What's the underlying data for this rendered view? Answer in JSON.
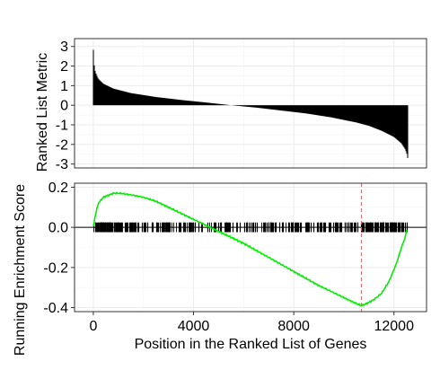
{
  "colors": {
    "background": "#ffffff",
    "panel_border": "#333333",
    "grid_major": "#ebebeb",
    "grid_minor": "#f5f5f5",
    "bars": "#000000",
    "enrichment_line": "#00ee00",
    "zero_line": "#000000",
    "max_dev_line": "#e06666"
  },
  "chart_data": [
    {
      "type": "bar",
      "panel": "top",
      "ylabel": "Ranked List Metric",
      "xlim": [
        -750,
        13300
      ],
      "ylim": [
        -3.2,
        3.4
      ],
      "yticks": [
        3,
        2,
        1,
        0,
        -1,
        -2,
        -3
      ],
      "ytick_labels": [
        "3",
        "2",
        "1",
        "0",
        "-1",
        "-2",
        "-3"
      ],
      "grid": true,
      "metric_curve": {
        "description": "ranked gene metric, sorted descending from position 0 to 12560",
        "x": [
          0,
          30,
          80,
          200,
          400,
          800,
          1500,
          2500,
          3500,
          4500,
          5500,
          6500,
          7500,
          8500,
          9500,
          10500,
          11000,
          11500,
          12000,
          12300,
          12450,
          12530,
          12560
        ],
        "y": [
          2.9,
          2.1,
          1.7,
          1.35,
          1.1,
          0.85,
          0.62,
          0.42,
          0.27,
          0.14,
          0.0,
          -0.12,
          -0.27,
          -0.42,
          -0.62,
          -0.88,
          -1.05,
          -1.3,
          -1.62,
          -1.95,
          -2.25,
          -2.55,
          -2.8
        ]
      }
    },
    {
      "type": "line",
      "panel": "bottom",
      "ylabel": "Running Enrichment Score",
      "xlabel": "Position in the Ranked List of Genes",
      "xlim": [
        -750,
        13300
      ],
      "ylim": [
        -0.42,
        0.22
      ],
      "xticks": [
        0,
        4000,
        8000,
        12000
      ],
      "xtick_labels": [
        "0",
        "4000",
        "8000",
        "12000"
      ],
      "yticks": [
        0.2,
        0.0,
        -0.2,
        -0.4
      ],
      "ytick_labels": [
        "0.2",
        "0.0",
        "-0.2",
        "-0.4"
      ],
      "grid": true,
      "hline": 0,
      "max_deviation_x": 10700,
      "gene_hits": {
        "description": "positions of gene-set members, drawn as vertical ticks around y = 0",
        "range": [
          0,
          12530
        ],
        "tick_half_height": 0.024,
        "approx_count": 360
      },
      "series": [
        {
          "x": [
            0,
            80,
            200,
            400,
            600,
            800,
            1000,
            1200,
            1500,
            2000,
            2500,
            3000,
            3500,
            4000,
            4500,
            5000,
            5500,
            6000,
            7000,
            8000,
            9000,
            10000,
            10500,
            10700,
            10900,
            11200,
            11500,
            11800,
            12100,
            12300,
            12450,
            12530
          ],
          "y": [
            0.0,
            0.06,
            0.12,
            0.15,
            0.16,
            0.17,
            0.17,
            0.168,
            0.162,
            0.15,
            0.13,
            0.1,
            0.07,
            0.04,
            0.01,
            -0.02,
            -0.05,
            -0.08,
            -0.15,
            -0.22,
            -0.29,
            -0.35,
            -0.38,
            -0.39,
            -0.38,
            -0.36,
            -0.33,
            -0.27,
            -0.18,
            -0.1,
            -0.05,
            0.0
          ]
        }
      ]
    }
  ]
}
